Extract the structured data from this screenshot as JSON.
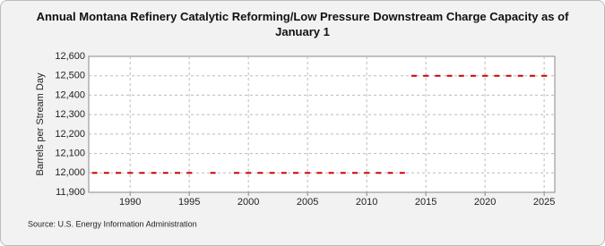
{
  "chart_data": {
    "type": "scatter",
    "title": "Annual Montana Refinery Catalytic Reforming/Low Pressure Downstream Charge Capacity as of January  1",
    "y_label": "Barrels per Stream Day",
    "source": "Source: U.S. Energy Information Administration",
    "series": [
      {
        "name": "Montana",
        "color": "#cc0000",
        "x": [
          1987,
          1988,
          1989,
          1990,
          1991,
          1992,
          1993,
          1994,
          1995,
          1997,
          1999,
          2000,
          2001,
          2002,
          2003,
          2004,
          2005,
          2006,
          2007,
          2008,
          2009,
          2010,
          2011,
          2012,
          2013,
          2014,
          2015,
          2016,
          2017,
          2018,
          2019,
          2020,
          2021,
          2022,
          2023,
          2024,
          2025
        ],
        "values": [
          12000,
          12000,
          12000,
          12000,
          12000,
          12000,
          12000,
          12000,
          12000,
          12000,
          12000,
          12000,
          12000,
          12000,
          12000,
          12000,
          12000,
          12000,
          12000,
          12000,
          12000,
          12000,
          12000,
          12000,
          12000,
          12500,
          12500,
          12500,
          12500,
          12500,
          12500,
          12500,
          12500,
          12500,
          12500,
          12500,
          12500
        ]
      }
    ],
    "xlim": [
      1986.5,
      2025.9
    ],
    "xticks": [
      1990,
      1995,
      2000,
      2005,
      2010,
      2015,
      2020,
      2025
    ],
    "ylim": [
      11900,
      12600
    ],
    "yticks": [
      {
        "value": 11900,
        "label": "11,900"
      },
      {
        "value": 12000,
        "label": "12,000"
      },
      {
        "value": 12100,
        "label": "12,100"
      },
      {
        "value": 12200,
        "label": "12,200"
      },
      {
        "value": 12300,
        "label": "12,300"
      },
      {
        "value": 12400,
        "label": "12,400"
      },
      {
        "value": 12500,
        "label": "12,500"
      },
      {
        "value": 12600,
        "label": "12,600"
      }
    ],
    "grid": true
  }
}
